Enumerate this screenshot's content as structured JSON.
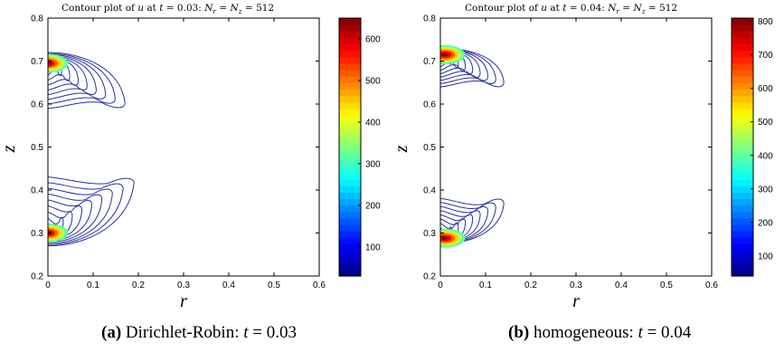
{
  "panels": [
    {
      "id": "a",
      "title": {
        "prefix": "Contour plot of ",
        "var": "u",
        "mid": " at ",
        "tvar": "t",
        "eq_text": " = 0.03:  ",
        "nr": "N",
        "nr_sub": "r",
        "eq2": " = ",
        "nz": "N",
        "nz_sub": "z",
        "grid_text": " = 512"
      },
      "caption": {
        "label": "(a)",
        "text": " Dirichlet-Robin: ",
        "tvar": "t",
        "eq_text": " = 0.03"
      }
    },
    {
      "id": "b",
      "title": {
        "prefix": "Contour plot of ",
        "var": "u",
        "mid": " at ",
        "tvar": "t",
        "eq_text": " = 0.04:  ",
        "nr": "N",
        "nr_sub": "r",
        "eq2": " = ",
        "nz": "N",
        "nz_sub": "z",
        "grid_text": " = 512"
      },
      "caption": {
        "label": "(b)",
        "text": " homogeneous: ",
        "tvar": "t",
        "eq_text": " = 0.04"
      }
    }
  ],
  "chart_data": [
    {
      "type": "contour",
      "xlabel": "r",
      "ylabel": "z",
      "xlim": [
        0,
        0.6
      ],
      "ylim": [
        0.2,
        0.8
      ],
      "xticks": [
        "0",
        "0.1",
        "0.2",
        "0.3",
        "0.4",
        "0.5",
        "0.6"
      ],
      "yticks": [
        "0.2",
        "0.3",
        "0.4",
        "0.5",
        "0.6",
        "0.7",
        "0.8"
      ],
      "colorbar": {
        "min": 30,
        "max": 650,
        "ticks": [
          "100",
          "200",
          "300",
          "400",
          "500",
          "600"
        ]
      },
      "contour_color": "#2b2f9e",
      "lobes": [
        {
          "z_center": 0.695,
          "r_peak": 0.0,
          "peak_value": 650,
          "outer_r_extent": 0.17,
          "outer_z_range": [
            0.59,
            0.72
          ]
        },
        {
          "z_center": 0.3,
          "r_peak": 0.0,
          "peak_value": 650,
          "outer_r_extent": 0.19,
          "outer_z_range": [
            0.27,
            0.43
          ]
        }
      ]
    },
    {
      "type": "contour",
      "xlabel": "r",
      "ylabel": "z",
      "xlim": [
        0,
        0.6
      ],
      "ylim": [
        0.2,
        0.8
      ],
      "xticks": [
        "0",
        "0.1",
        "0.2",
        "0.3",
        "0.4",
        "0.5",
        "0.6"
      ],
      "yticks": [
        "0.2",
        "0.3",
        "0.4",
        "0.5",
        "0.6",
        "0.7",
        "0.8"
      ],
      "colorbar": {
        "min": 40,
        "max": 810,
        "ticks": [
          "100",
          "200",
          "300",
          "400",
          "500",
          "600",
          "700",
          "800"
        ]
      },
      "contour_color": "#2b2f9e",
      "lobes": [
        {
          "z_center": 0.715,
          "r_peak": 0.01,
          "peak_value": 810,
          "outer_r_extent": 0.14,
          "outer_z_range": [
            0.64,
            0.73
          ]
        },
        {
          "z_center": 0.288,
          "r_peak": 0.01,
          "peak_value": 810,
          "outer_r_extent": 0.14,
          "outer_z_range": [
            0.275,
            0.38
          ]
        }
      ]
    }
  ]
}
